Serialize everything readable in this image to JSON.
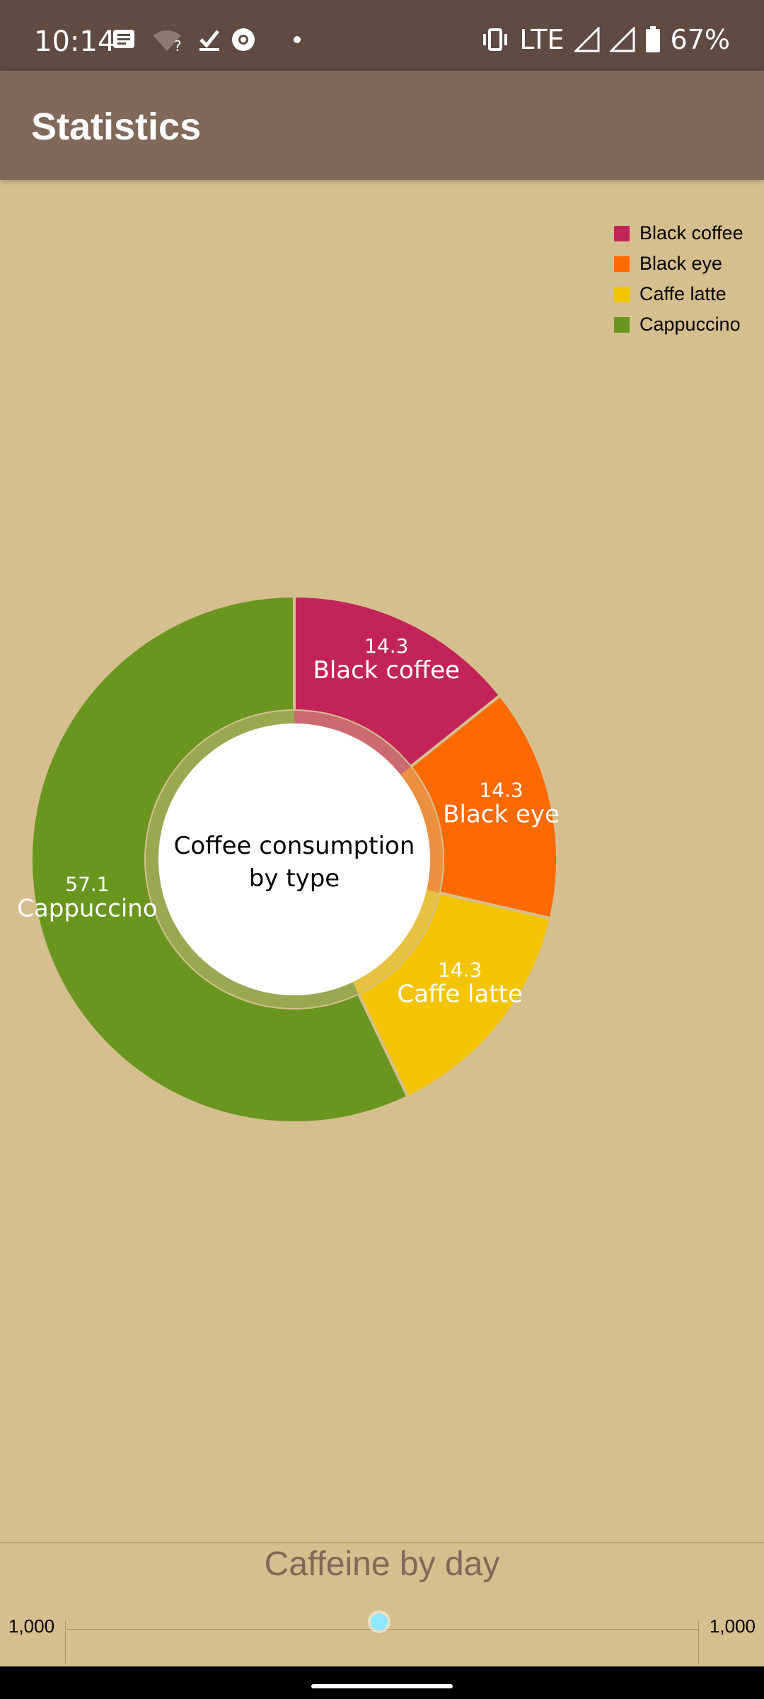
{
  "status_bar": {
    "time": "10:14",
    "network": "LTE",
    "battery": "67%",
    "icons": [
      "message-icon",
      "wifi-unknown-icon",
      "check-icon",
      "chrome-icon",
      "dot-icon",
      "vibrate-icon",
      "signal-icon",
      "signal-icon",
      "battery-icon"
    ]
  },
  "app_bar": {
    "title": "Statistics"
  },
  "chart_data": [
    {
      "type": "pie",
      "variant": "donut",
      "center_label_lines": [
        "Coffee consumption",
        "by type"
      ],
      "legend_position": "top-right",
      "slices": [
        {
          "name": "Black coffee",
          "value": 14.3,
          "label": "14.3",
          "color": "#c2245a"
        },
        {
          "name": "Black eye",
          "value": 14.3,
          "label": "14.3",
          "color": "#ff6a00"
        },
        {
          "name": "Caffe latte",
          "value": 14.3,
          "label": "14.3",
          "color": "#f4c400"
        },
        {
          "name": "Cappuccino",
          "value": 57.1,
          "label": "57.1",
          "color": "#6a9620"
        }
      ]
    },
    {
      "type": "bar",
      "title": "Caffeine by day",
      "y_left_tick": "1,000",
      "y_right_tick": "1,000"
    }
  ],
  "colors": {
    "status_bar": "#5f4b41",
    "app_bar": "#80685a",
    "background": "#d5bf8e",
    "highlight": "#8fe8ff"
  }
}
